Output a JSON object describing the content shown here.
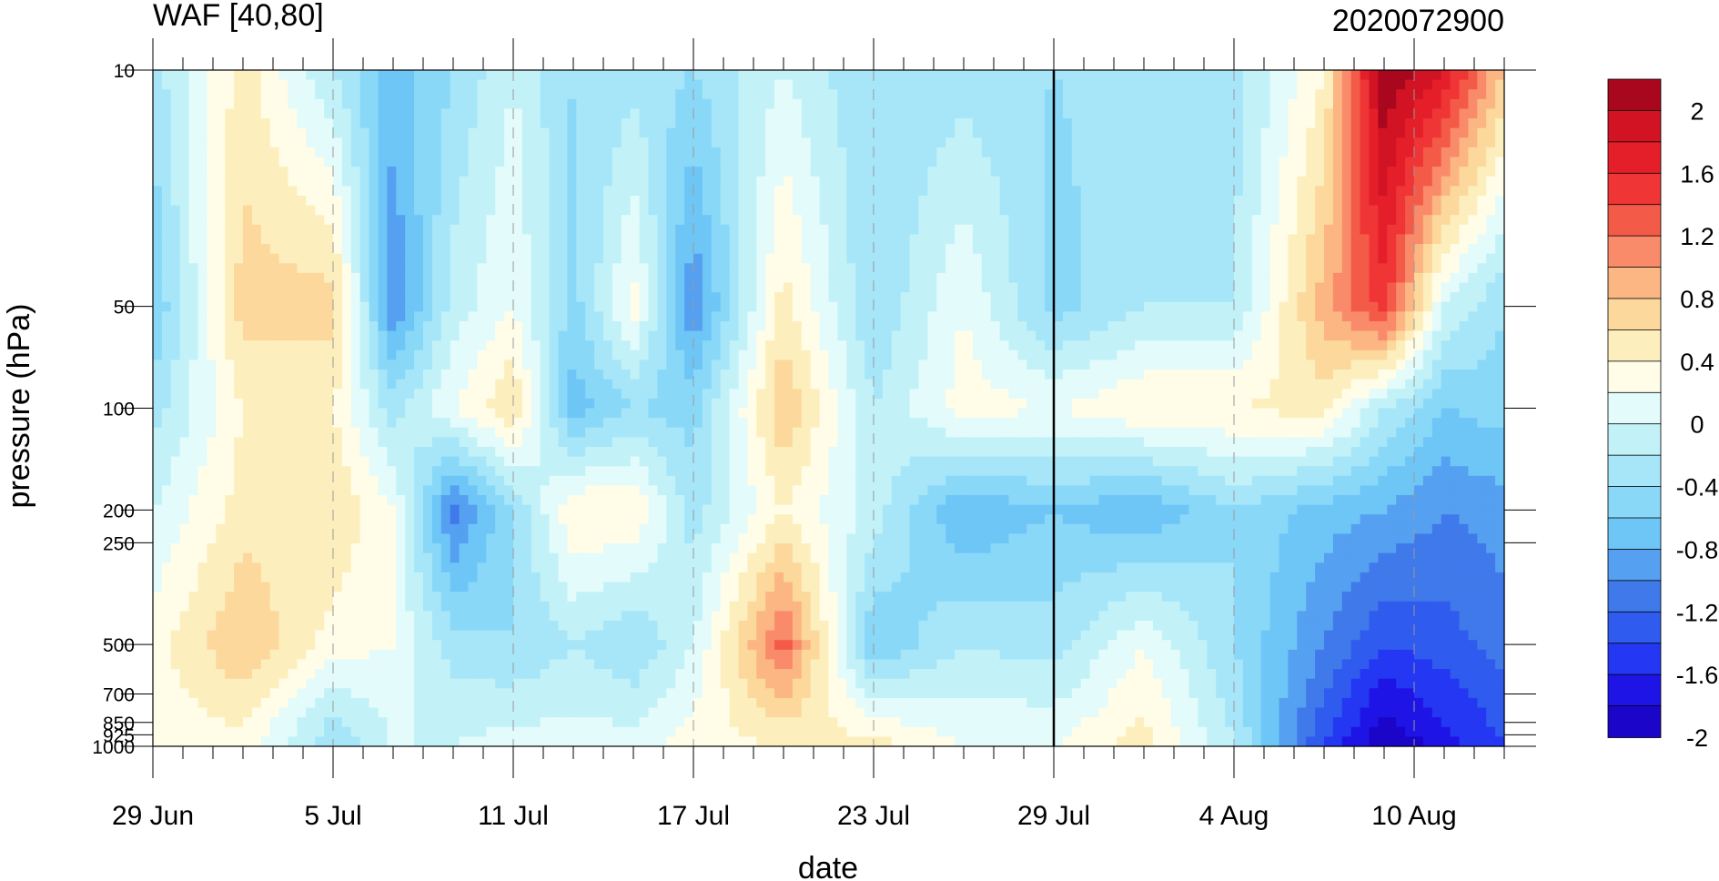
{
  "chart_data": {
    "type": "heatmap",
    "title": "WAF [40,80]",
    "right_title": "2020072900",
    "xlabel": "date",
    "ylabel": "pressure (hPa)",
    "x_tick_labels": [
      "29 Jun",
      "5 Jul",
      "11 Jul",
      "17 Jul",
      "23 Jul",
      "29 Jul",
      "4 Aug",
      "10 Aug"
    ],
    "x_tick_days": [
      0,
      6,
      12,
      18,
      24,
      30,
      36,
      42
    ],
    "x_range_days": [
      0,
      45
    ],
    "reference_line_day": 30,
    "y_scale": "log",
    "y_reversed": true,
    "y_tick_labels": [
      "10",
      "50",
      "100",
      "200",
      "250",
      "500",
      "700",
      "850",
      "925",
      "1000"
    ],
    "y_tick_values": [
      10,
      50,
      100,
      200,
      250,
      500,
      700,
      850,
      925,
      1000
    ],
    "y_range": [
      10,
      1000
    ],
    "colorbar_labels": [
      "2",
      "1.6",
      "1.2",
      "0.8",
      "0.4",
      "0",
      "-0.4",
      "-0.8",
      "-1.2",
      "-1.6",
      "-2"
    ],
    "colorbar_levels": [
      -2.2,
      -2.0,
      -1.8,
      -1.6,
      -1.4,
      -1.2,
      -1.0,
      -0.8,
      -0.6,
      -0.4,
      -0.2,
      0.0,
      0.2,
      0.4,
      0.6,
      0.8,
      1.0,
      1.2,
      1.4,
      1.6,
      1.8,
      2.0
    ],
    "colorbar_colors": [
      "#1a05c8",
      "#1e14e6",
      "#2437f2",
      "#2f5bee",
      "#3f79ea",
      "#55a0f0",
      "#6ec6f7",
      "#8ad8f8",
      "#a6e6f8",
      "#c2f2f8",
      "#e3fbfb",
      "#fffce8",
      "#fdefbd",
      "#fcd89c",
      "#fbb683",
      "#f98b6a",
      "#f45a48",
      "#ef3535",
      "#e51f2a",
      "#d11324",
      "#a8071e"
    ],
    "grid": "dashed vertical lines at date ticks",
    "legend": "vertical colorbar right",
    "regions": [
      {
        "day": 0,
        "values": [
          {
            "p": 10,
            "v": -0.5
          },
          {
            "p": 50,
            "v": -0.8
          },
          {
            "p": 100,
            "v": -0.5
          },
          {
            "p": 200,
            "v": -0.2
          },
          {
            "p": 500,
            "v": 0.1
          },
          {
            "p": 1000,
            "v": 0.1
          }
        ]
      },
      {
        "day": 3,
        "values": [
          {
            "p": 10,
            "v": 0.3
          },
          {
            "p": 50,
            "v": 0.5
          },
          {
            "p": 100,
            "v": 0.2
          },
          {
            "p": 200,
            "v": 0.3
          },
          {
            "p": 500,
            "v": 0.6
          },
          {
            "p": 1000,
            "v": 0.1
          }
        ]
      },
      {
        "day": 6,
        "values": [
          {
            "p": 10,
            "v": -0.4
          },
          {
            "p": 50,
            "v": 0.5
          },
          {
            "p": 100,
            "v": 0.2
          },
          {
            "p": 200,
            "v": 0.4
          },
          {
            "p": 500,
            "v": 0.1
          },
          {
            "p": 1000,
            "v": -0.6
          }
        ]
      },
      {
        "day": 8,
        "values": [
          {
            "p": 10,
            "v": -0.9
          },
          {
            "p": 50,
            "v": -1.2
          },
          {
            "p": 100,
            "v": -0.5
          },
          {
            "p": 200,
            "v": 0.0
          },
          {
            "p": 500,
            "v": 0.0
          },
          {
            "p": 1000,
            "v": -0.2
          }
        ]
      },
      {
        "day": 10,
        "values": [
          {
            "p": 10,
            "v": -0.6
          },
          {
            "p": 50,
            "v": -0.3
          },
          {
            "p": 100,
            "v": 0.0
          },
          {
            "p": 200,
            "v": -1.3
          },
          {
            "p": 500,
            "v": -0.5
          },
          {
            "p": 1000,
            "v": -0.2
          }
        ]
      },
      {
        "day": 12,
        "values": [
          {
            "p": 10,
            "v": -0.2
          },
          {
            "p": 50,
            "v": 0.0
          },
          {
            "p": 100,
            "v": 0.4
          },
          {
            "p": 200,
            "v": -0.6
          },
          {
            "p": 500,
            "v": -0.6
          },
          {
            "p": 1000,
            "v": -0.1
          }
        ]
      },
      {
        "day": 14,
        "values": [
          {
            "p": 10,
            "v": -0.6
          },
          {
            "p": 50,
            "v": -0.7
          },
          {
            "p": 100,
            "v": -0.9
          },
          {
            "p": 200,
            "v": 0.2
          },
          {
            "p": 500,
            "v": -0.4
          },
          {
            "p": 1000,
            "v": -0.1
          }
        ]
      },
      {
        "day": 16,
        "values": [
          {
            "p": 10,
            "v": -0.5
          },
          {
            "p": 50,
            "v": 0.1
          },
          {
            "p": 100,
            "v": -0.6
          },
          {
            "p": 200,
            "v": 0.2
          },
          {
            "p": 500,
            "v": -0.6
          },
          {
            "p": 1000,
            "v": -0.1
          }
        ]
      },
      {
        "day": 18,
        "values": [
          {
            "p": 10,
            "v": -0.6
          },
          {
            "p": 50,
            "v": -1.2
          },
          {
            "p": 100,
            "v": -0.7
          },
          {
            "p": 200,
            "v": -0.5
          },
          {
            "p": 500,
            "v": -0.2
          },
          {
            "p": 1000,
            "v": 0.1
          }
        ]
      },
      {
        "day": 21,
        "values": [
          {
            "p": 10,
            "v": -0.2
          },
          {
            "p": 50,
            "v": 0.3
          },
          {
            "p": 100,
            "v": 0.6
          },
          {
            "p": 200,
            "v": 0.2
          },
          {
            "p": 500,
            "v": 1.1
          },
          {
            "p": 1000,
            "v": 0.2
          }
        ]
      },
      {
        "day": 24,
        "values": [
          {
            "p": 10,
            "v": -0.6
          },
          {
            "p": 50,
            "v": -0.6
          },
          {
            "p": 100,
            "v": -0.4
          },
          {
            "p": 200,
            "v": -0.3
          },
          {
            "p": 500,
            "v": -0.8
          },
          {
            "p": 1000,
            "v": 0.3
          }
        ]
      },
      {
        "day": 27,
        "values": [
          {
            "p": 10,
            "v": -0.5
          },
          {
            "p": 50,
            "v": 0.0
          },
          {
            "p": 100,
            "v": 0.1
          },
          {
            "p": 200,
            "v": -1.0
          },
          {
            "p": 500,
            "v": -0.4
          },
          {
            "p": 1000,
            "v": 0.0
          }
        ]
      },
      {
        "day": 30,
        "values": [
          {
            "p": 10,
            "v": -0.6
          },
          {
            "p": 50,
            "v": -0.7
          },
          {
            "p": 100,
            "v": 0.0
          },
          {
            "p": 200,
            "v": -0.8
          },
          {
            "p": 500,
            "v": -0.5
          },
          {
            "p": 1000,
            "v": 0.0
          }
        ]
      },
      {
        "day": 33,
        "values": [
          {
            "p": 10,
            "v": -0.5
          },
          {
            "p": 50,
            "v": -0.4
          },
          {
            "p": 100,
            "v": 0.2
          },
          {
            "p": 200,
            "v": -1.0
          },
          {
            "p": 500,
            "v": 0.0
          },
          {
            "p": 1000,
            "v": 0.3
          }
        ]
      },
      {
        "day": 36,
        "values": [
          {
            "p": 10,
            "v": -0.5
          },
          {
            "p": 50,
            "v": -0.4
          },
          {
            "p": 100,
            "v": 0.2
          },
          {
            "p": 200,
            "v": -0.6
          },
          {
            "p": 500,
            "v": -0.6
          },
          {
            "p": 1000,
            "v": -0.4
          }
        ]
      },
      {
        "day": 39,
        "values": [
          {
            "p": 10,
            "v": 0.2
          },
          {
            "p": 50,
            "v": 0.7
          },
          {
            "p": 100,
            "v": 0.3
          },
          {
            "p": 200,
            "v": -0.9
          },
          {
            "p": 500,
            "v": -1.2
          },
          {
            "p": 1000,
            "v": -1.6
          }
        ]
      },
      {
        "day": 41,
        "values": [
          {
            "p": 10,
            "v": 2.0
          },
          {
            "p": 50,
            "v": 1.3
          },
          {
            "p": 100,
            "v": -0.4
          },
          {
            "p": 200,
            "v": -1.0
          },
          {
            "p": 500,
            "v": -1.6
          },
          {
            "p": 1000,
            "v": -2.2
          }
        ]
      },
      {
        "day": 43,
        "values": [
          {
            "p": 10,
            "v": 1.6
          },
          {
            "p": 50,
            "v": -0.2
          },
          {
            "p": 100,
            "v": -0.8
          },
          {
            "p": 200,
            "v": -1.2
          },
          {
            "p": 500,
            "v": -1.5
          },
          {
            "p": 1000,
            "v": -1.9
          }
        ]
      },
      {
        "day": 45,
        "values": [
          {
            "p": 10,
            "v": 0.6
          },
          {
            "p": 50,
            "v": -0.6
          },
          {
            "p": 100,
            "v": -0.7
          },
          {
            "p": 200,
            "v": -1.1
          },
          {
            "p": 500,
            "v": -1.3
          },
          {
            "p": 1000,
            "v": -1.6
          }
        ]
      }
    ]
  }
}
